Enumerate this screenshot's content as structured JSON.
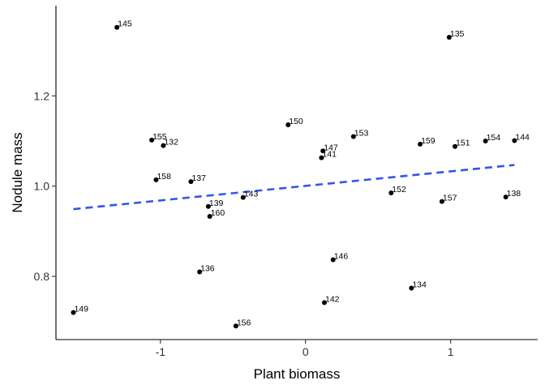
{
  "chart_data": {
    "type": "scatter",
    "xlabel": "Plant biomass",
    "ylabel": "Nodule mass",
    "xlim": [
      -1.72,
      1.6
    ],
    "ylim": [
      0.66,
      1.4
    ],
    "xticks": [
      -1,
      0,
      1
    ],
    "xtick_labels": [
      "-1",
      "0",
      "1"
    ],
    "yticks": [
      0.8,
      1.0,
      1.2
    ],
    "ytick_labels": [
      "0.8",
      "1.0",
      "1.2"
    ],
    "grid": false,
    "legend": "none",
    "point_color": "#000000",
    "trend_color": "#3355ee",
    "points": [
      {
        "label": "145",
        "x": -1.3,
        "y": 1.352
      },
      {
        "label": "135",
        "x": 0.99,
        "y": 1.33
      },
      {
        "label": "155",
        "x": -1.06,
        "y": 1.102
      },
      {
        "label": "132",
        "x": -0.98,
        "y": 1.09
      },
      {
        "label": "150",
        "x": -0.12,
        "y": 1.136
      },
      {
        "label": "153",
        "x": 0.33,
        "y": 1.11
      },
      {
        "label": "159",
        "x": 0.79,
        "y": 1.093
      },
      {
        "label": "151",
        "x": 1.03,
        "y": 1.088
      },
      {
        "label": "154",
        "x": 1.24,
        "y": 1.1
      },
      {
        "label": "144",
        "x": 1.44,
        "y": 1.101
      },
      {
        "label": "147",
        "x": 0.12,
        "y": 1.078
      },
      {
        "label": "141",
        "x": 0.11,
        "y": 1.063
      },
      {
        "label": "158",
        "x": -1.03,
        "y": 1.014
      },
      {
        "label": "137",
        "x": -0.79,
        "y": 1.01
      },
      {
        "label": "152",
        "x": 0.59,
        "y": 0.985
      },
      {
        "label": "157",
        "x": 0.94,
        "y": 0.966
      },
      {
        "label": "138",
        "x": 1.38,
        "y": 0.976
      },
      {
        "label": "143",
        "x": -0.43,
        "y": 0.975
      },
      {
        "label": "139",
        "x": -0.67,
        "y": 0.955
      },
      {
        "label": "160",
        "x": -0.66,
        "y": 0.933
      },
      {
        "label": "146",
        "x": 0.19,
        "y": 0.837
      },
      {
        "label": "136",
        "x": -0.73,
        "y": 0.81
      },
      {
        "label": "134",
        "x": 0.73,
        "y": 0.774
      },
      {
        "label": "142",
        "x": 0.13,
        "y": 0.742
      },
      {
        "label": "149",
        "x": -1.6,
        "y": 0.72
      },
      {
        "label": "156",
        "x": -0.48,
        "y": 0.69
      }
    ],
    "trend_line": {
      "x": [
        -1.6,
        1.44
      ],
      "y": [
        0.949,
        1.047
      ],
      "style": "dashed"
    }
  }
}
